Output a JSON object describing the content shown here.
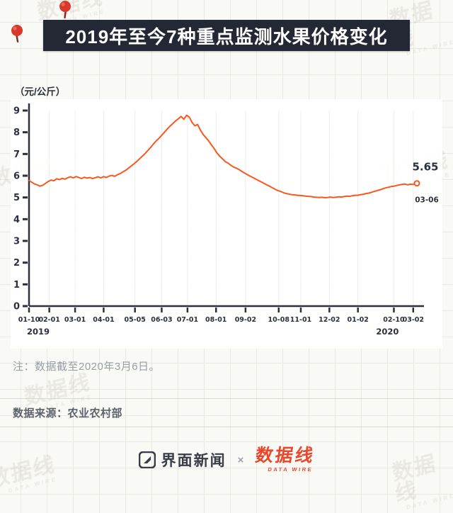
{
  "page": {
    "title": "2019年至今7种重点监测水果价格变化",
    "unit_label": "（元/公斤）",
    "note": "注：数据截至2020年3月6日。",
    "source": "数据来源：农业农村部",
    "footer": {
      "jiemian": "界面新闻",
      "cross": "×",
      "datawire": "数据线",
      "datawire_sub": "DATA WIRE"
    },
    "watermark": "数据线",
    "watermark_sub": "DATA WIRE"
  },
  "colors": {
    "line": "#f8581d",
    "pin_red": "#d7382b",
    "title_bg": "#232834",
    "axis": "#2b303b",
    "grid_faint": "#ededea",
    "datawire_red": "#e8472b"
  },
  "chart_data": {
    "type": "line",
    "title": "2019年至今7种重点监测水果价格变化",
    "ylabel": "（元/公斤）",
    "ylim": [
      0,
      9
    ],
    "y_ticks": [
      0,
      1,
      2,
      3,
      4,
      5,
      6,
      7,
      8,
      9
    ],
    "x_max": 421,
    "x_ticks": [
      {
        "label": "01-10",
        "day": 0
      },
      {
        "label": "02-01",
        "day": 22
      },
      {
        "label": "03-01",
        "day": 50
      },
      {
        "label": "04-01",
        "day": 81
      },
      {
        "label": "05-05",
        "day": 115
      },
      {
        "label": "06-03",
        "day": 144
      },
      {
        "label": "07-01",
        "day": 172
      },
      {
        "label": "08-01",
        "day": 203
      },
      {
        "label": "09-02",
        "day": 235
      },
      {
        "label": "10-08",
        "day": 271
      },
      {
        "label": "11-01",
        "day": 295
      },
      {
        "label": "12-02",
        "day": 326
      },
      {
        "label": "01-02",
        "day": 357
      },
      {
        "label": "02-10",
        "day": 396
      },
      {
        "label": "03-02",
        "day": 417
      }
    ],
    "year_labels": [
      {
        "label": "2019",
        "day": 10
      },
      {
        "label": "2020",
        "day": 389
      }
    ],
    "end_label": {
      "value": "5.65",
      "date": "03-06"
    },
    "points": [
      [
        0,
        5.78
      ],
      [
        3,
        5.7
      ],
      [
        6,
        5.62
      ],
      [
        9,
        5.58
      ],
      [
        12,
        5.52
      ],
      [
        15,
        5.56
      ],
      [
        18,
        5.65
      ],
      [
        21,
        5.74
      ],
      [
        24,
        5.8
      ],
      [
        27,
        5.77
      ],
      [
        30,
        5.86
      ],
      [
        33,
        5.82
      ],
      [
        36,
        5.88
      ],
      [
        39,
        5.84
      ],
      [
        42,
        5.91
      ],
      [
        45,
        5.95
      ],
      [
        48,
        5.9
      ],
      [
        51,
        5.96
      ],
      [
        54,
        5.92
      ],
      [
        57,
        5.87
      ],
      [
        60,
        5.93
      ],
      [
        63,
        5.89
      ],
      [
        66,
        5.92
      ],
      [
        69,
        5.87
      ],
      [
        72,
        5.91
      ],
      [
        75,
        5.95
      ],
      [
        78,
        5.9
      ],
      [
        81,
        5.96
      ],
      [
        84,
        5.92
      ],
      [
        87,
        5.98
      ],
      [
        90,
        6.02
      ],
      [
        93,
        5.97
      ],
      [
        96,
        6.05
      ],
      [
        99,
        6.1
      ],
      [
        102,
        6.18
      ],
      [
        105,
        6.25
      ],
      [
        108,
        6.35
      ],
      [
        111,
        6.45
      ],
      [
        114,
        6.55
      ],
      [
        117,
        6.66
      ],
      [
        120,
        6.78
      ],
      [
        123,
        6.9
      ],
      [
        126,
        7.02
      ],
      [
        129,
        7.16
      ],
      [
        132,
        7.3
      ],
      [
        135,
        7.46
      ],
      [
        138,
        7.6
      ],
      [
        141,
        7.72
      ],
      [
        144,
        7.86
      ],
      [
        147,
        8.0
      ],
      [
        150,
        8.15
      ],
      [
        153,
        8.28
      ],
      [
        156,
        8.4
      ],
      [
        159,
        8.52
      ],
      [
        162,
        8.62
      ],
      [
        165,
        8.73
      ],
      [
        168,
        8.6
      ],
      [
        171,
        8.78
      ],
      [
        174,
        8.7
      ],
      [
        177,
        8.45
      ],
      [
        180,
        8.3
      ],
      [
        183,
        8.36
      ],
      [
        186,
        8.1
      ],
      [
        189,
        7.9
      ],
      [
        192,
        7.75
      ],
      [
        195,
        7.6
      ],
      [
        198,
        7.42
      ],
      [
        201,
        7.25
      ],
      [
        204,
        7.05
      ],
      [
        207,
        6.9
      ],
      [
        210,
        6.78
      ],
      [
        213,
        6.65
      ],
      [
        216,
        6.58
      ],
      [
        219,
        6.48
      ],
      [
        222,
        6.4
      ],
      [
        225,
        6.35
      ],
      [
        228,
        6.28
      ],
      [
        231,
        6.2
      ],
      [
        234,
        6.12
      ],
      [
        237,
        6.05
      ],
      [
        240,
        5.98
      ],
      [
        243,
        5.92
      ],
      [
        246,
        5.85
      ],
      [
        249,
        5.78
      ],
      [
        252,
        5.72
      ],
      [
        255,
        5.65
      ],
      [
        258,
        5.58
      ],
      [
        261,
        5.52
      ],
      [
        264,
        5.45
      ],
      [
        267,
        5.38
      ],
      [
        270,
        5.32
      ],
      [
        273,
        5.28
      ],
      [
        276,
        5.22
      ],
      [
        279,
        5.18
      ],
      [
        282,
        5.16
      ],
      [
        285,
        5.13
      ],
      [
        288,
        5.12
      ],
      [
        291,
        5.1
      ],
      [
        294,
        5.09
      ],
      [
        297,
        5.08
      ],
      [
        300,
        5.06
      ],
      [
        303,
        5.05
      ],
      [
        306,
        5.04
      ],
      [
        309,
        5.02
      ],
      [
        312,
        5.01
      ],
      [
        315,
        5.0
      ],
      [
        318,
        5.01
      ],
      [
        321,
        4.99
      ],
      [
        324,
        5.0
      ],
      [
        327,
        5.02
      ],
      [
        330,
        5.0
      ],
      [
        333,
        5.01
      ],
      [
        336,
        5.03
      ],
      [
        339,
        5.02
      ],
      [
        342,
        5.04
      ],
      [
        345,
        5.06
      ],
      [
        348,
        5.05
      ],
      [
        351,
        5.08
      ],
      [
        354,
        5.1
      ],
      [
        357,
        5.1
      ],
      [
        360,
        5.13
      ],
      [
        363,
        5.15
      ],
      [
        366,
        5.18
      ],
      [
        369,
        5.2
      ],
      [
        372,
        5.24
      ],
      [
        375,
        5.28
      ],
      [
        378,
        5.32
      ],
      [
        381,
        5.35
      ],
      [
        384,
        5.4
      ],
      [
        387,
        5.44
      ],
      [
        390,
        5.47
      ],
      [
        393,
        5.5
      ],
      [
        396,
        5.52
      ],
      [
        399,
        5.55
      ],
      [
        402,
        5.58
      ],
      [
        405,
        5.6
      ],
      [
        408,
        5.62
      ],
      [
        411,
        5.58
      ],
      [
        414,
        5.61
      ],
      [
        417,
        5.6
      ],
      [
        419,
        5.62
      ],
      [
        421,
        5.65
      ]
    ]
  }
}
